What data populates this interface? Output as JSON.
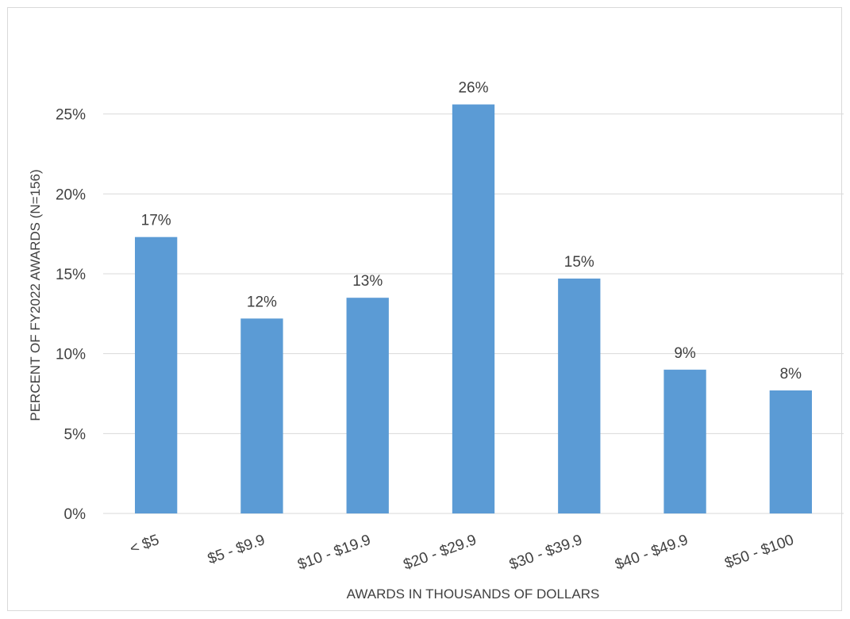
{
  "chart_data": {
    "type": "bar",
    "title": "",
    "xlabel": "AWARDS IN THOUSANDS OF DOLLARS",
    "ylabel": "PERCENT OF FY2022 AWARDS (N=156)",
    "categories": [
      "< $5",
      "$5 - $9.9",
      "$10 - $19.9",
      "$20 - $29.9",
      "$30 - $39.9",
      "$40 - $49.9",
      "$50 - $100"
    ],
    "values": [
      17.3,
      12.2,
      13.5,
      25.6,
      14.7,
      9.0,
      7.7
    ],
    "data_labels": [
      "17%",
      "12%",
      "13%",
      "26%",
      "15%",
      "9%",
      "8%"
    ],
    "ylim": [
      0,
      30
    ],
    "yticks": [
      0,
      5,
      10,
      15,
      20,
      25
    ],
    "ytick_labels": [
      "0%",
      "5%",
      "10%",
      "15%",
      "20%",
      "25%"
    ],
    "grid": true,
    "legend": "none",
    "colors": {
      "bar": "#5b9bd5",
      "grid": "#d9d9d9",
      "text": "#404040"
    }
  }
}
